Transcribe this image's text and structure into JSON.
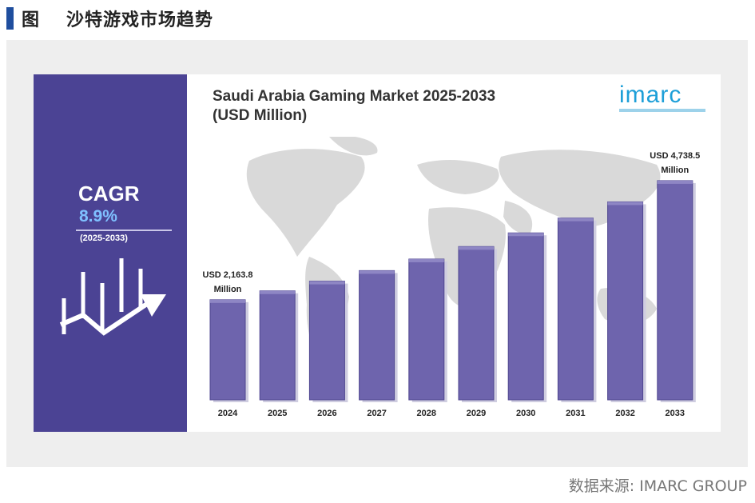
{
  "header": {
    "figure_label": "图",
    "title": "沙特游戏市场趋势"
  },
  "source": "数据来源: IMARC GROUP",
  "sidebar": {
    "cagr_label": "CAGR",
    "cagr_value": "8.9%",
    "period": "(2025-2033)"
  },
  "logo_text": "imarc",
  "colors": {
    "side": "#4b4394",
    "bar": "#6e64ad",
    "bar_dark": "#4f4690",
    "cagr_value": "#7fc0ff",
    "logo": "#1d9fd8"
  },
  "chart_data": {
    "type": "bar",
    "title": "Saudi Arabia Gaming Market 2025-2033",
    "subtitle": "(USD Million)",
    "categories": [
      "2024",
      "2025",
      "2026",
      "2027",
      "2028",
      "2029",
      "2030",
      "2031",
      "2032",
      "2033"
    ],
    "values": [
      2163.8,
      2356,
      2566,
      2794,
      3043,
      3314,
      3609,
      3930,
      4280,
      4738.5
    ],
    "annotations": [
      {
        "index": 0,
        "lines": [
          "USD 2,163.8",
          "Million"
        ]
      },
      {
        "index": 9,
        "lines": [
          "USD 4,738.5",
          "Million"
        ]
      }
    ],
    "ylim": [
      0,
      5100
    ],
    "legend": "none",
    "grid": false
  }
}
